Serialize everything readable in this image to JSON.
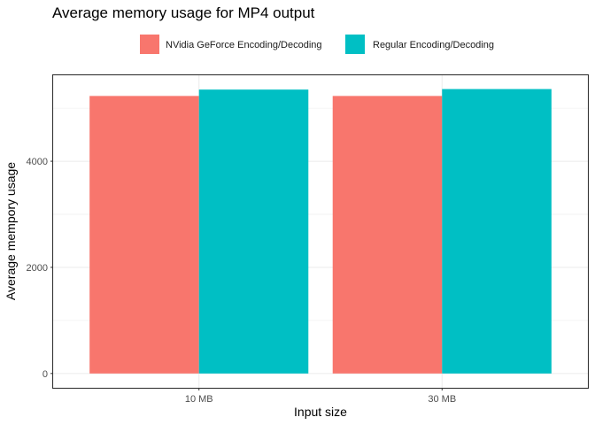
{
  "chart_data": {
    "type": "bar",
    "title": "Average memory usage for MP4 output",
    "xlabel": "Input size",
    "ylabel": "Average mempory usage",
    "categories": [
      "10 MB",
      "30 MB"
    ],
    "series": [
      {
        "name": "NVidia GeForce Encoding/Decoding",
        "color": "#F8766D",
        "values": [
          5230,
          5230
        ]
      },
      {
        "name": "Regular Encoding/Decoding",
        "color": "#00BFC4",
        "values": [
          5350,
          5360
        ]
      }
    ],
    "y_ticks": [
      0,
      2000,
      4000
    ],
    "y_tick_labels": [
      "0",
      "2000",
      "4000"
    ],
    "ylim": [
      -270,
      5620
    ],
    "grid": true,
    "legend_position": "top"
  }
}
